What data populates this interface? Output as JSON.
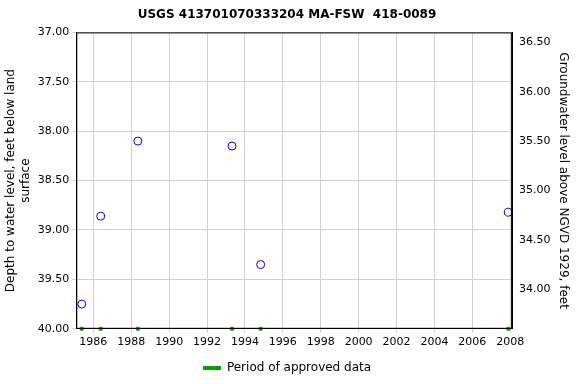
{
  "chart_data": {
    "type": "scatter",
    "title": "USGS 413701070333204 MA-FSW  418-0089",
    "x_label": null,
    "y_label": [
      "Depth to water level, feet below land",
      "surface"
    ],
    "y2_label": "Groundwater level above NGVD 1929, feet",
    "xlim": [
      1985.1,
      2008.1
    ],
    "xticks": [
      1986,
      1988,
      1990,
      1992,
      1994,
      1996,
      1998,
      2000,
      2002,
      2004,
      2006,
      2008
    ],
    "ylim": [
      40,
      37
    ],
    "yticks": [
      {
        "value": 37,
        "label": "37.00"
      },
      {
        "value": 37.5,
        "label": "37.50"
      },
      {
        "value": 38,
        "label": "38.00"
      },
      {
        "value": 38.5,
        "label": "38.50"
      },
      {
        "value": 39,
        "label": "39.00"
      },
      {
        "value": 39.5,
        "label": "39.50"
      },
      {
        "value": 40,
        "label": "40.00"
      }
    ],
    "y2lim": [
      33.6,
      36.6
    ],
    "y2ticks": [
      {
        "value": 34,
        "label": "34.00"
      },
      {
        "value": 34.5,
        "label": "34.50"
      },
      {
        "value": 35,
        "label": "35.00"
      },
      {
        "value": 35.5,
        "label": "35.50"
      },
      {
        "value": 36,
        "label": "36.00"
      },
      {
        "value": 36.5,
        "label": "36.50"
      }
    ],
    "grid": true,
    "legend": "bottom",
    "series": [
      {
        "color": "#0000cc",
        "marker": "circle",
        "line_style": "none",
        "x": [
          1985.39,
          1986.39,
          1988.35,
          1993.32,
          1994.83,
          2007.9
        ],
        "values": [
          39.75,
          38.86,
          38.1,
          38.15,
          39.35,
          38.82
        ]
      },
      {
        "name": "Period of approved data",
        "color": "#00a000",
        "marker": "square",
        "line_style": "none",
        "x": [
          1985.39,
          1986.39,
          1988.35,
          1993.32,
          1994.83,
          2007.9
        ],
        "values": [
          40,
          40,
          40,
          40,
          40,
          40
        ]
      }
    ]
  }
}
